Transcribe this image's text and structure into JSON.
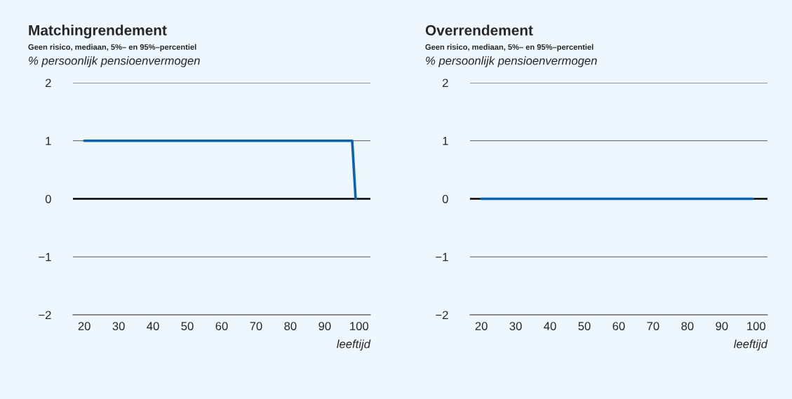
{
  "chart_data": [
    {
      "type": "line",
      "title": "Matchingrendement",
      "subtitle": "Geen risico, mediaan, 5%– en 95%–percentiel",
      "ylabel": "% persoonlijk pensioenvermogen",
      "xlabel": "leeftijd",
      "series": [
        {
          "color": "#0b63b6",
          "x": [
            20,
            98,
            99
          ],
          "values": [
            1,
            1,
            0
          ]
        }
      ],
      "xlim": [
        16.7,
        103.3
      ],
      "xticks": [
        20,
        30,
        40,
        50,
        60,
        70,
        80,
        90,
        100
      ],
      "ylim": [
        -2,
        2
      ],
      "yticks": [
        -2,
        -1,
        0,
        1,
        2
      ],
      "ref_lines": [
        {
          "axis": "y",
          "value": 0,
          "color": "#000000"
        }
      ],
      "grid": "y"
    },
    {
      "type": "line",
      "title": "Overrendement",
      "subtitle": "Geen risico, mediaan, 5%– en 95%–percentiel",
      "ylabel": "% persoonlijk pensioenvermogen",
      "xlabel": "leeftijd",
      "series": [
        {
          "color": "#0b63b6",
          "x": [
            20,
            99
          ],
          "values": [
            0,
            0
          ]
        }
      ],
      "xlim": [
        16.7,
        103.3
      ],
      "xticks": [
        20,
        30,
        40,
        50,
        60,
        70,
        80,
        90,
        100
      ],
      "ylim": [
        -2,
        2
      ],
      "yticks": [
        -2,
        -1,
        0,
        1,
        2
      ],
      "ref_lines": [
        {
          "axis": "y",
          "value": 0,
          "color": "#000000"
        }
      ],
      "grid": "y"
    }
  ]
}
